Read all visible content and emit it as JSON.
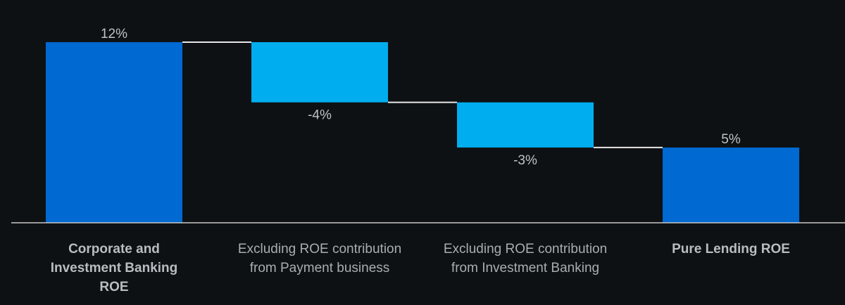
{
  "chart_data": {
    "type": "bar",
    "subtype": "waterfall",
    "title": "",
    "xlabel": "",
    "ylabel": "",
    "ylim": [
      0,
      12
    ],
    "grid": false,
    "categories": [
      "Corporate and Investment Banking ROE",
      "Excluding ROE contribution from Payment business",
      "Excluding ROE contribution from Investment Banking",
      "Pure Lending ROE"
    ],
    "steps": [
      {
        "kind": "total",
        "start": 0,
        "end": 12,
        "label": "12%",
        "color": "#0069d2"
      },
      {
        "kind": "delta",
        "start": 12,
        "end": 8,
        "label": "-4%",
        "color": "#00aeef"
      },
      {
        "kind": "delta",
        "start": 8,
        "end": 5,
        "label": "-3%",
        "color": "#00aeef"
      },
      {
        "kind": "total",
        "start": 0,
        "end": 5,
        "label": "5%",
        "color": "#0069d2"
      }
    ],
    "label_lines": [
      [
        "Corporate and",
        "Investment Banking",
        "ROE"
      ],
      [
        "Excluding ROE contribution",
        "from Payment business"
      ],
      [
        "Excluding ROE contribution",
        "from Investment Banking"
      ],
      [
        "Pure Lending ROE"
      ]
    ],
    "label_bold": [
      true,
      false,
      false,
      true
    ],
    "colors": {
      "background": "#0e1113",
      "axis": "#c8c8c8",
      "connector": "#e6e6e6",
      "value_text": "#bfc3c7",
      "label_text": "#a9adb2"
    }
  }
}
